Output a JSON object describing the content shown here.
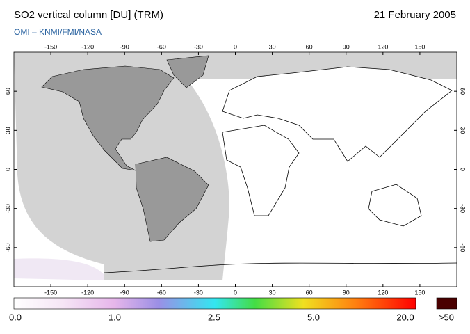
{
  "header": {
    "title": "SO2 vertical column [DU] (TRM)",
    "date": "21 February 2005",
    "credit": "OMI  –  KNMI/FMI/NASA"
  },
  "map": {
    "lon_ticks": [
      -150,
      -120,
      -90,
      -60,
      -30,
      0,
      30,
      60,
      90,
      120,
      150
    ],
    "lat_ticks": [
      60,
      30,
      0,
      -30,
      -60
    ]
  },
  "colorbar": {
    "labels": [
      "0.0",
      "1.0",
      "2.5",
      "5.0",
      "20.0",
      ">50"
    ]
  }
}
